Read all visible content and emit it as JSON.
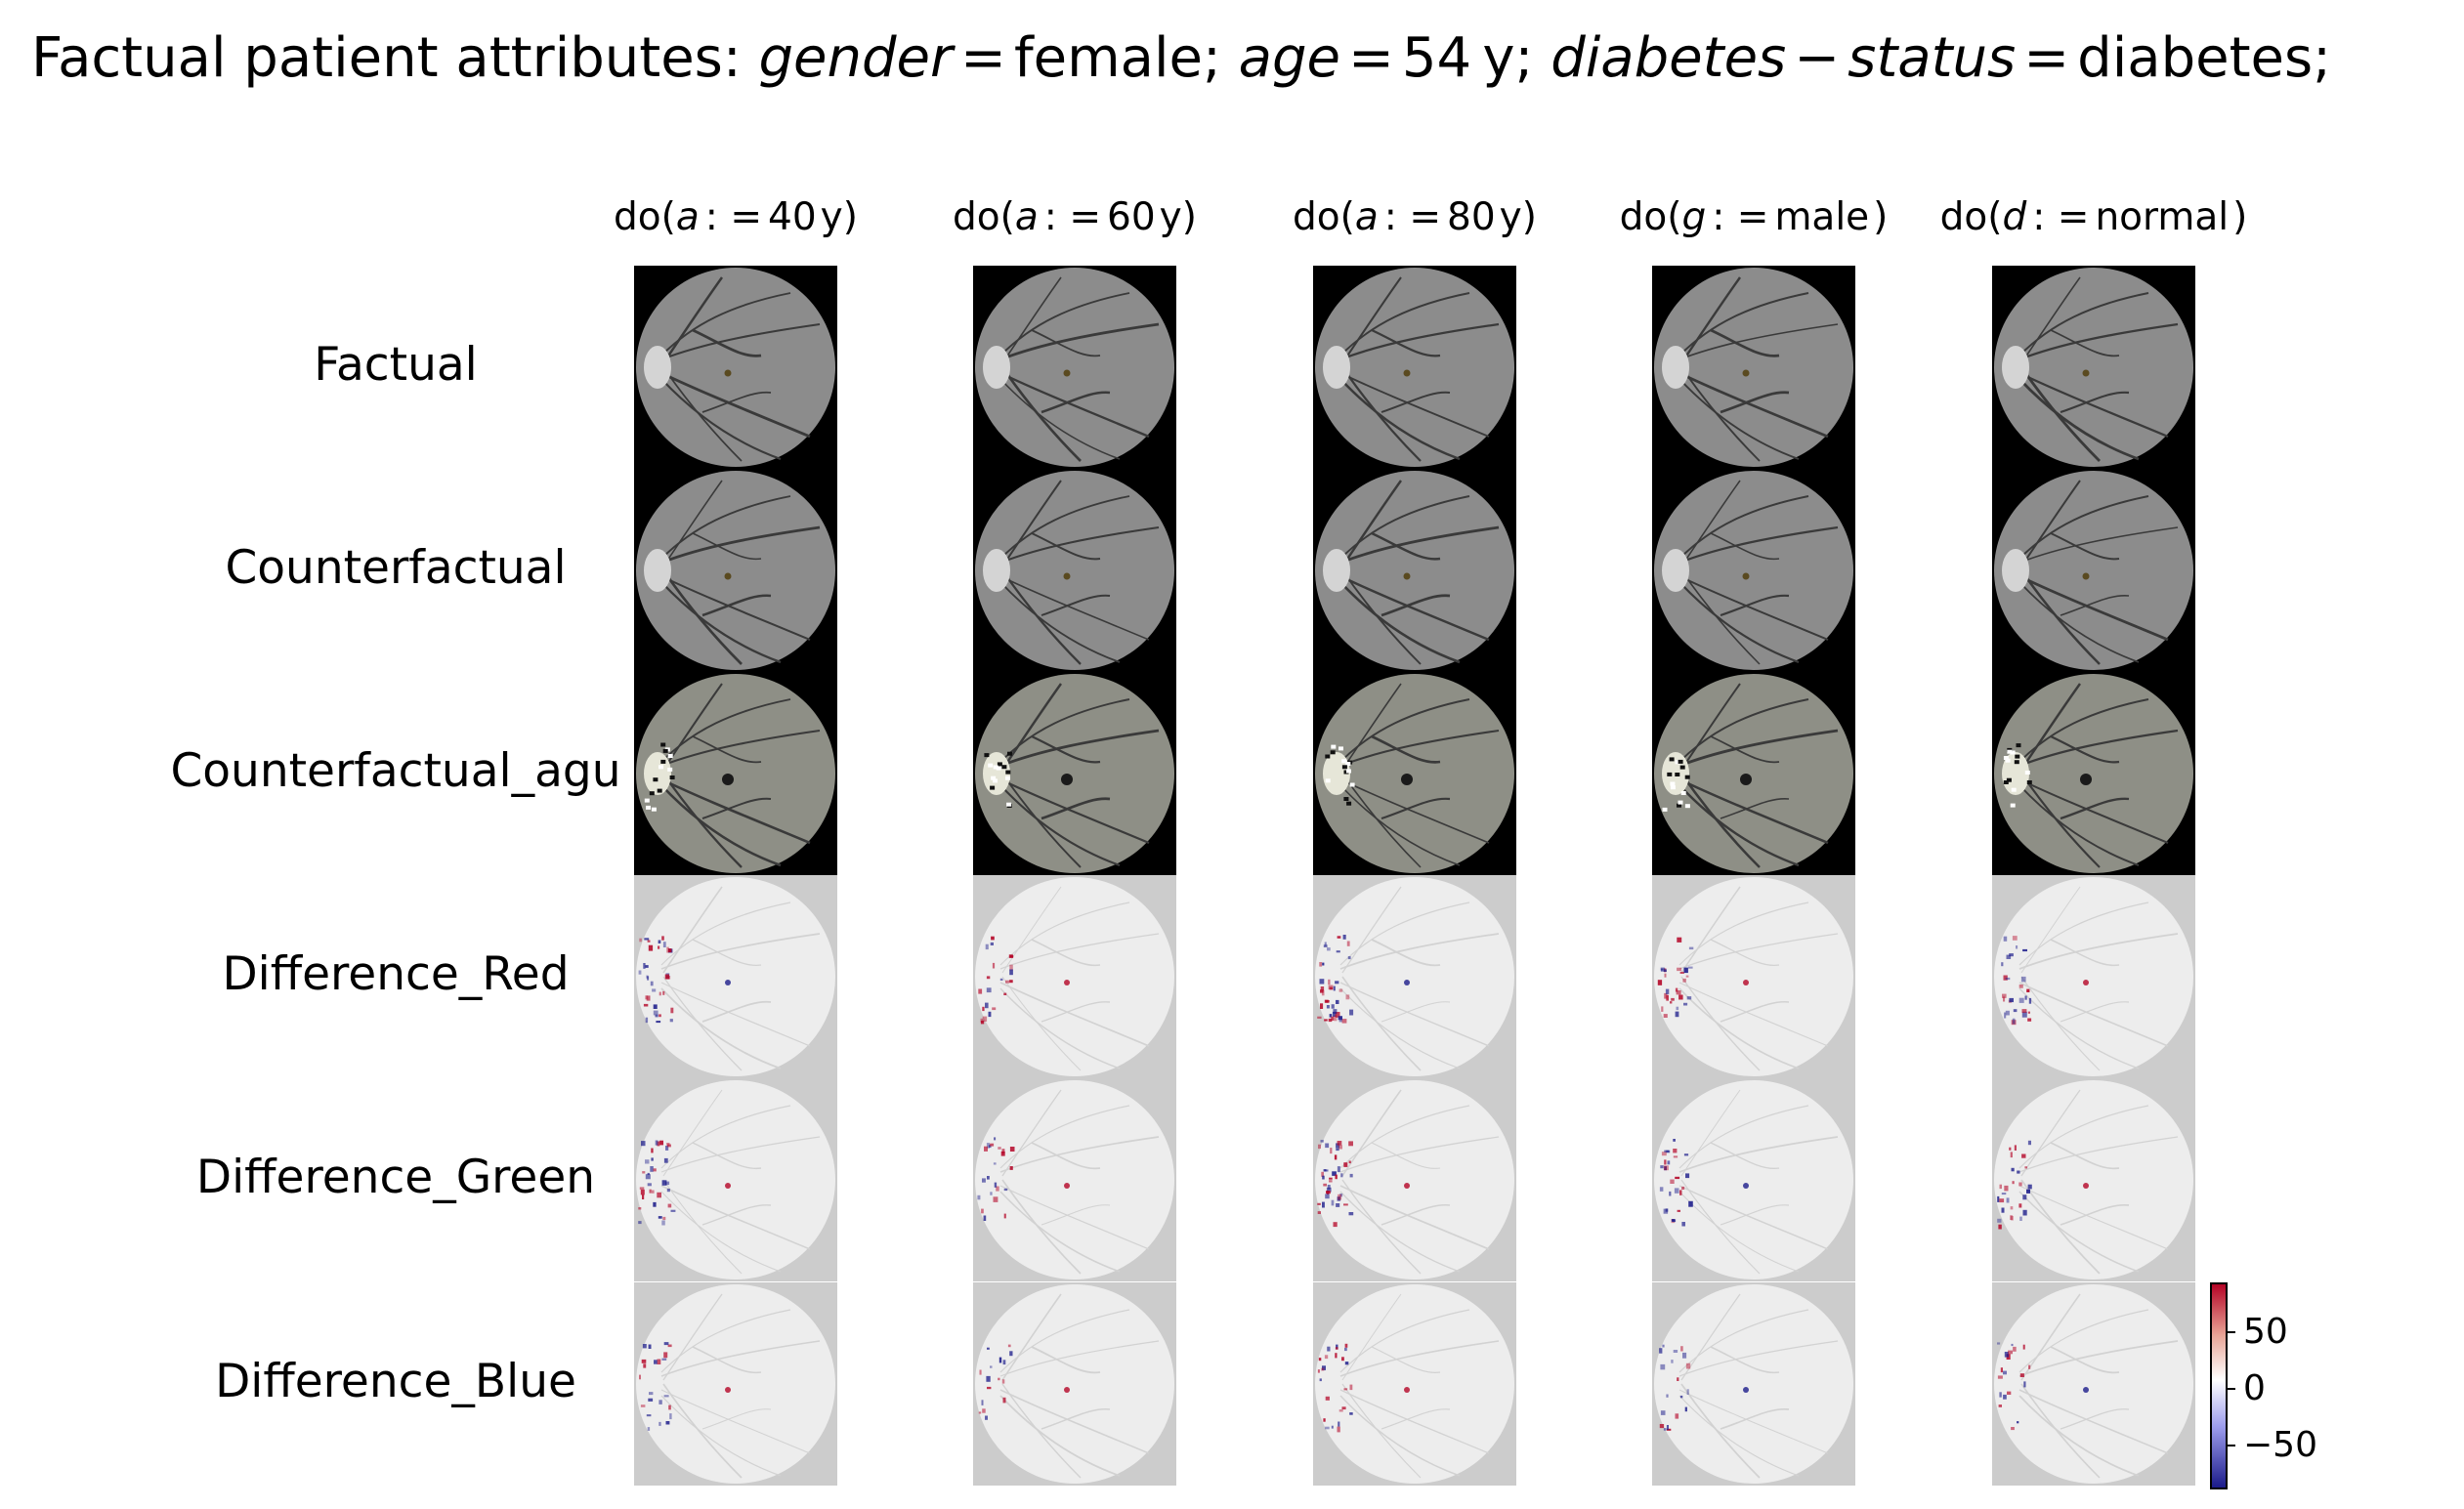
{
  "figure": {
    "title": {
      "prefix": "Factual patient attributes: ",
      "attrs": [
        {
          "name": "gender",
          "value": "female"
        },
        {
          "name": "age",
          "value": "54",
          "unit": "y"
        },
        {
          "name": "diabetes",
          "minus": "status",
          "value": "diabetes"
        }
      ],
      "eq": "=",
      "sep": ";",
      "minus_op": "−"
    },
    "columns": [
      {
        "prefix": "do(",
        "var": "a",
        "op": ": =",
        "value": "40",
        "unit": "y",
        "suffix": ")"
      },
      {
        "prefix": "do(",
        "var": "a",
        "op": ": =",
        "value": "60",
        "unit": "y",
        "suffix": ")"
      },
      {
        "prefix": "do(",
        "var": "a",
        "op": ": =",
        "value": "80",
        "unit": "y",
        "suffix": ")"
      },
      {
        "prefix": "do(",
        "var": "g",
        "op": ": =",
        "value": "male",
        "unit": "",
        "suffix": ")"
      },
      {
        "prefix": "do(",
        "var": "d",
        "op": ": =",
        "value": "normal",
        "unit": "",
        "suffix": ")"
      }
    ],
    "rows": [
      {
        "label": "Factual",
        "kind": "fundus"
      },
      {
        "label": "Counterfactual",
        "kind": "fundus"
      },
      {
        "label": "Counterfactual_agu",
        "kind": "fundus-aug"
      },
      {
        "label": "Difference_Red",
        "kind": "diff"
      },
      {
        "label": "Difference_Green",
        "kind": "diff"
      },
      {
        "label": "Difference_Blue",
        "kind": "diff"
      }
    ],
    "colorbar": {
      "ticks": [
        "50",
        "0",
        "−50"
      ],
      "colors": {
        "high": "#b40426",
        "mid": "#ffffff",
        "low": "#1b1b8a"
      }
    }
  }
}
